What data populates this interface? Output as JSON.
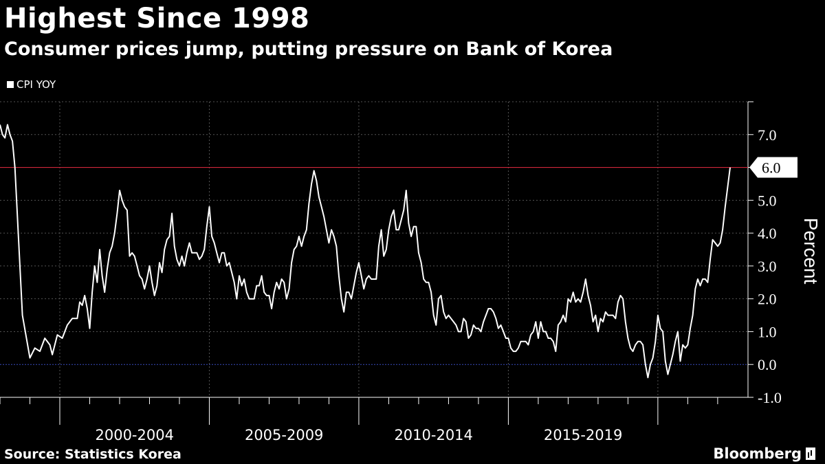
{
  "header": {
    "title": "Highest Since 1998",
    "subtitle": "Consumer prices jump, putting pressure on Bank of Korea"
  },
  "footer": {
    "source": "Source: Statistics Korea",
    "brand": "Bloomberg"
  },
  "colors": {
    "background": "#000000",
    "series": "#ffffff",
    "reference_line": "#d0273a",
    "zero_line": "#3b4cc0",
    "grid": "#555555"
  },
  "chart_data": {
    "type": "line",
    "ylabel": "Percent",
    "ylim": [
      -1.0,
      8.0
    ],
    "yticks": [
      "7.0",
      "6.0",
      "5.0",
      "4.0",
      "3.0",
      "2.0",
      "1.0",
      "0.0",
      "-1.0"
    ],
    "xlim": [
      "1998-01",
      "2022-06"
    ],
    "x_period_labels": [
      "2000-2004",
      "2005-2009",
      "2010-2014",
      "2015-2019"
    ],
    "reference_line": {
      "value": 6.0,
      "label": "6.0"
    },
    "legend": {
      "position": "top-left",
      "entries": [
        "CPI YOY"
      ]
    },
    "grid": true,
    "series": [
      {
        "name": "CPI YOY",
        "points": [
          [
            "1998-01",
            7.3
          ],
          [
            "1998-02",
            7.0
          ],
          [
            "1998-03",
            6.9
          ],
          [
            "1998-04",
            7.3
          ],
          [
            "1998-05",
            7.0
          ],
          [
            "1998-06",
            6.8
          ],
          [
            "1998-07",
            6.0
          ],
          [
            "1998-10",
            1.5
          ],
          [
            "1999-01",
            0.2
          ],
          [
            "1999-03",
            0.5
          ],
          [
            "1999-05",
            0.4
          ],
          [
            "1999-07",
            0.8
          ],
          [
            "1999-09",
            0.6
          ],
          [
            "1999-10",
            0.3
          ],
          [
            "1999-12",
            0.9
          ],
          [
            "2000-02",
            0.8
          ],
          [
            "2000-04",
            1.2
          ],
          [
            "2000-06",
            1.4
          ],
          [
            "2000-08",
            1.4
          ],
          [
            "2000-09",
            1.9
          ],
          [
            "2000-10",
            1.8
          ],
          [
            "2000-11",
            2.1
          ],
          [
            "2000-12",
            1.7
          ],
          [
            "2001-01",
            1.1
          ],
          [
            "2001-02",
            2.2
          ],
          [
            "2001-03",
            3.0
          ],
          [
            "2001-04",
            2.5
          ],
          [
            "2001-05",
            3.5
          ],
          [
            "2001-06",
            2.7
          ],
          [
            "2001-07",
            2.2
          ],
          [
            "2001-08",
            2.9
          ],
          [
            "2001-09",
            3.4
          ],
          [
            "2001-10",
            3.6
          ],
          [
            "2001-11",
            4.0
          ],
          [
            "2001-12",
            4.6
          ],
          [
            "2002-01",
            5.3
          ],
          [
            "2002-02",
            5.0
          ],
          [
            "2002-03",
            4.8
          ],
          [
            "2002-04",
            4.7
          ],
          [
            "2002-05",
            3.3
          ],
          [
            "2002-06",
            3.4
          ],
          [
            "2002-07",
            3.3
          ],
          [
            "2002-08",
            3.0
          ],
          [
            "2002-09",
            2.7
          ],
          [
            "2002-10",
            2.6
          ],
          [
            "2002-11",
            2.3
          ],
          [
            "2002-12",
            2.6
          ],
          [
            "2003-01",
            3.0
          ],
          [
            "2003-02",
            2.5
          ],
          [
            "2003-03",
            2.1
          ],
          [
            "2003-04",
            2.4
          ],
          [
            "2003-05",
            3.1
          ],
          [
            "2003-06",
            2.8
          ],
          [
            "2003-07",
            3.5
          ],
          [
            "2003-08",
            3.8
          ],
          [
            "2003-09",
            3.9
          ],
          [
            "2003-10",
            4.6
          ],
          [
            "2003-11",
            3.6
          ],
          [
            "2003-12",
            3.2
          ],
          [
            "2004-01",
            3.0
          ],
          [
            "2004-02",
            3.3
          ],
          [
            "2004-03",
            3.0
          ],
          [
            "2004-04",
            3.4
          ],
          [
            "2004-05",
            3.7
          ],
          [
            "2004-06",
            3.4
          ],
          [
            "2004-07",
            3.4
          ],
          [
            "2004-08",
            3.4
          ],
          [
            "2004-09",
            3.2
          ],
          [
            "2004-10",
            3.3
          ],
          [
            "2004-11",
            3.5
          ],
          [
            "2004-12",
            4.2
          ],
          [
            "2005-01",
            4.8
          ],
          [
            "2005-02",
            3.9
          ],
          [
            "2005-03",
            3.7
          ],
          [
            "2005-04",
            3.4
          ],
          [
            "2005-05",
            3.1
          ],
          [
            "2005-06",
            3.4
          ],
          [
            "2005-07",
            3.4
          ],
          [
            "2005-08",
            3.0
          ],
          [
            "2005-09",
            3.1
          ],
          [
            "2005-10",
            2.8
          ],
          [
            "2005-11",
            2.5
          ],
          [
            "2005-12",
            2.0
          ],
          [
            "2006-01",
            2.7
          ],
          [
            "2006-02",
            2.4
          ],
          [
            "2006-03",
            2.6
          ],
          [
            "2006-04",
            2.2
          ],
          [
            "2006-05",
            2.0
          ],
          [
            "2006-06",
            2.0
          ],
          [
            "2006-07",
            2.0
          ],
          [
            "2006-08",
            2.4
          ],
          [
            "2006-09",
            2.4
          ],
          [
            "2006-10",
            2.7
          ],
          [
            "2006-11",
            2.2
          ],
          [
            "2006-12",
            2.1
          ],
          [
            "2007-01",
            2.1
          ],
          [
            "2007-02",
            1.7
          ],
          [
            "2007-03",
            2.2
          ],
          [
            "2007-04",
            2.5
          ],
          [
            "2007-05",
            2.3
          ],
          [
            "2007-06",
            2.6
          ],
          [
            "2007-07",
            2.5
          ],
          [
            "2007-08",
            2.0
          ],
          [
            "2007-09",
            2.3
          ],
          [
            "2007-10",
            3.1
          ],
          [
            "2007-11",
            3.5
          ],
          [
            "2007-12",
            3.6
          ],
          [
            "2008-01",
            3.9
          ],
          [
            "2008-02",
            3.6
          ],
          [
            "2008-03",
            3.9
          ],
          [
            "2008-04",
            4.1
          ],
          [
            "2008-05",
            4.9
          ],
          [
            "2008-06",
            5.5
          ],
          [
            "2008-07",
            5.9
          ],
          [
            "2008-08",
            5.6
          ],
          [
            "2008-09",
            5.1
          ],
          [
            "2008-10",
            4.8
          ],
          [
            "2008-11",
            4.5
          ],
          [
            "2008-12",
            4.1
          ],
          [
            "2009-01",
            3.7
          ],
          [
            "2009-02",
            4.1
          ],
          [
            "2009-03",
            3.9
          ],
          [
            "2009-04",
            3.6
          ],
          [
            "2009-05",
            2.7
          ],
          [
            "2009-06",
            2.0
          ],
          [
            "2009-07",
            1.6
          ],
          [
            "2009-08",
            2.2
          ],
          [
            "2009-09",
            2.2
          ],
          [
            "2009-10",
            2.0
          ],
          [
            "2009-11",
            2.4
          ],
          [
            "2009-12",
            2.8
          ],
          [
            "2010-01",
            3.1
          ],
          [
            "2010-02",
            2.7
          ],
          [
            "2010-03",
            2.3
          ],
          [
            "2010-04",
            2.6
          ],
          [
            "2010-05",
            2.7
          ],
          [
            "2010-06",
            2.6
          ],
          [
            "2010-07",
            2.6
          ],
          [
            "2010-08",
            2.6
          ],
          [
            "2010-09",
            3.6
          ],
          [
            "2010-10",
            4.1
          ],
          [
            "2010-11",
            3.3
          ],
          [
            "2010-12",
            3.5
          ],
          [
            "2011-01",
            4.1
          ],
          [
            "2011-02",
            4.5
          ],
          [
            "2011-03",
            4.7
          ],
          [
            "2011-04",
            4.1
          ],
          [
            "2011-05",
            4.1
          ],
          [
            "2011-06",
            4.4
          ],
          [
            "2011-07",
            4.7
          ],
          [
            "2011-08",
            5.3
          ],
          [
            "2011-09",
            4.3
          ],
          [
            "2011-10",
            3.9
          ],
          [
            "2011-11",
            4.2
          ],
          [
            "2011-12",
            4.2
          ],
          [
            "2012-01",
            3.4
          ],
          [
            "2012-02",
            3.1
          ],
          [
            "2012-03",
            2.6
          ],
          [
            "2012-04",
            2.5
          ],
          [
            "2012-05",
            2.5
          ],
          [
            "2012-06",
            2.2
          ],
          [
            "2012-07",
            1.5
          ],
          [
            "2012-08",
            1.2
          ],
          [
            "2012-09",
            2.0
          ],
          [
            "2012-10",
            2.1
          ],
          [
            "2012-11",
            1.6
          ],
          [
            "2012-12",
            1.4
          ],
          [
            "2013-01",
            1.5
          ],
          [
            "2013-02",
            1.4
          ],
          [
            "2013-03",
            1.3
          ],
          [
            "2013-04",
            1.2
          ],
          [
            "2013-05",
            1.0
          ],
          [
            "2013-06",
            1.0
          ],
          [
            "2013-07",
            1.4
          ],
          [
            "2013-08",
            1.3
          ],
          [
            "2013-09",
            0.8
          ],
          [
            "2013-10",
            0.9
          ],
          [
            "2013-11",
            1.2
          ],
          [
            "2013-12",
            1.1
          ],
          [
            "2014-01",
            1.1
          ],
          [
            "2014-02",
            1.0
          ],
          [
            "2014-03",
            1.3
          ],
          [
            "2014-04",
            1.5
          ],
          [
            "2014-05",
            1.7
          ],
          [
            "2014-06",
            1.7
          ],
          [
            "2014-07",
            1.6
          ],
          [
            "2014-08",
            1.4
          ],
          [
            "2014-09",
            1.1
          ],
          [
            "2014-10",
            1.2
          ],
          [
            "2014-11",
            1.0
          ],
          [
            "2014-12",
            0.8
          ],
          [
            "2015-01",
            0.8
          ],
          [
            "2015-02",
            0.5
          ],
          [
            "2015-03",
            0.4
          ],
          [
            "2015-04",
            0.4
          ],
          [
            "2015-05",
            0.5
          ],
          [
            "2015-06",
            0.7
          ],
          [
            "2015-07",
            0.7
          ],
          [
            "2015-08",
            0.7
          ],
          [
            "2015-09",
            0.6
          ],
          [
            "2015-10",
            0.9
          ],
          [
            "2015-11",
            1.0
          ],
          [
            "2015-12",
            1.3
          ],
          [
            "2016-01",
            0.8
          ],
          [
            "2016-02",
            1.3
          ],
          [
            "2016-03",
            1.0
          ],
          [
            "2016-04",
            1.0
          ],
          [
            "2016-05",
            0.8
          ],
          [
            "2016-06",
            0.8
          ],
          [
            "2016-07",
            0.7
          ],
          [
            "2016-08",
            0.4
          ],
          [
            "2016-09",
            1.2
          ],
          [
            "2016-10",
            1.3
          ],
          [
            "2016-11",
            1.5
          ],
          [
            "2016-12",
            1.3
          ],
          [
            "2017-01",
            2.0
          ],
          [
            "2017-02",
            1.9
          ],
          [
            "2017-03",
            2.2
          ],
          [
            "2017-04",
            1.9
          ],
          [
            "2017-05",
            2.0
          ],
          [
            "2017-06",
            1.9
          ],
          [
            "2017-07",
            2.2
          ],
          [
            "2017-08",
            2.6
          ],
          [
            "2017-09",
            2.1
          ],
          [
            "2017-10",
            1.8
          ],
          [
            "2017-11",
            1.3
          ],
          [
            "2017-12",
            1.5
          ],
          [
            "2018-01",
            1.0
          ],
          [
            "2018-02",
            1.4
          ],
          [
            "2018-03",
            1.3
          ],
          [
            "2018-04",
            1.6
          ],
          [
            "2018-05",
            1.5
          ],
          [
            "2018-06",
            1.5
          ],
          [
            "2018-07",
            1.5
          ],
          [
            "2018-08",
            1.4
          ],
          [
            "2018-09",
            1.9
          ],
          [
            "2018-10",
            2.1
          ],
          [
            "2018-11",
            2.0
          ],
          [
            "2018-12",
            1.3
          ],
          [
            "2019-01",
            0.8
          ],
          [
            "2019-02",
            0.5
          ],
          [
            "2019-03",
            0.4
          ],
          [
            "2019-04",
            0.6
          ],
          [
            "2019-05",
            0.7
          ],
          [
            "2019-06",
            0.7
          ],
          [
            "2019-07",
            0.6
          ],
          [
            "2019-08",
            0.0
          ],
          [
            "2019-09",
            -0.4
          ],
          [
            "2019-10",
            0.0
          ],
          [
            "2019-11",
            0.2
          ],
          [
            "2019-12",
            0.7
          ],
          [
            "2020-01",
            1.5
          ],
          [
            "2020-02",
            1.1
          ],
          [
            "2020-03",
            1.0
          ],
          [
            "2020-04",
            0.1
          ],
          [
            "2020-05",
            -0.3
          ],
          [
            "2020-06",
            0.0
          ],
          [
            "2020-07",
            0.3
          ],
          [
            "2020-08",
            0.7
          ],
          [
            "2020-09",
            1.0
          ],
          [
            "2020-10",
            0.1
          ],
          [
            "2020-11",
            0.6
          ],
          [
            "2020-12",
            0.5
          ],
          [
            "2021-01",
            0.6
          ],
          [
            "2021-02",
            1.1
          ],
          [
            "2021-03",
            1.5
          ],
          [
            "2021-04",
            2.3
          ],
          [
            "2021-05",
            2.6
          ],
          [
            "2021-06",
            2.4
          ],
          [
            "2021-07",
            2.6
          ],
          [
            "2021-08",
            2.6
          ],
          [
            "2021-09",
            2.5
          ],
          [
            "2021-10",
            3.2
          ],
          [
            "2021-11",
            3.8
          ],
          [
            "2021-12",
            3.7
          ],
          [
            "2022-01",
            3.6
          ],
          [
            "2022-02",
            3.7
          ],
          [
            "2022-03",
            4.1
          ],
          [
            "2022-04",
            4.8
          ],
          [
            "2022-05",
            5.4
          ],
          [
            "2022-06",
            6.0
          ]
        ]
      }
    ]
  }
}
